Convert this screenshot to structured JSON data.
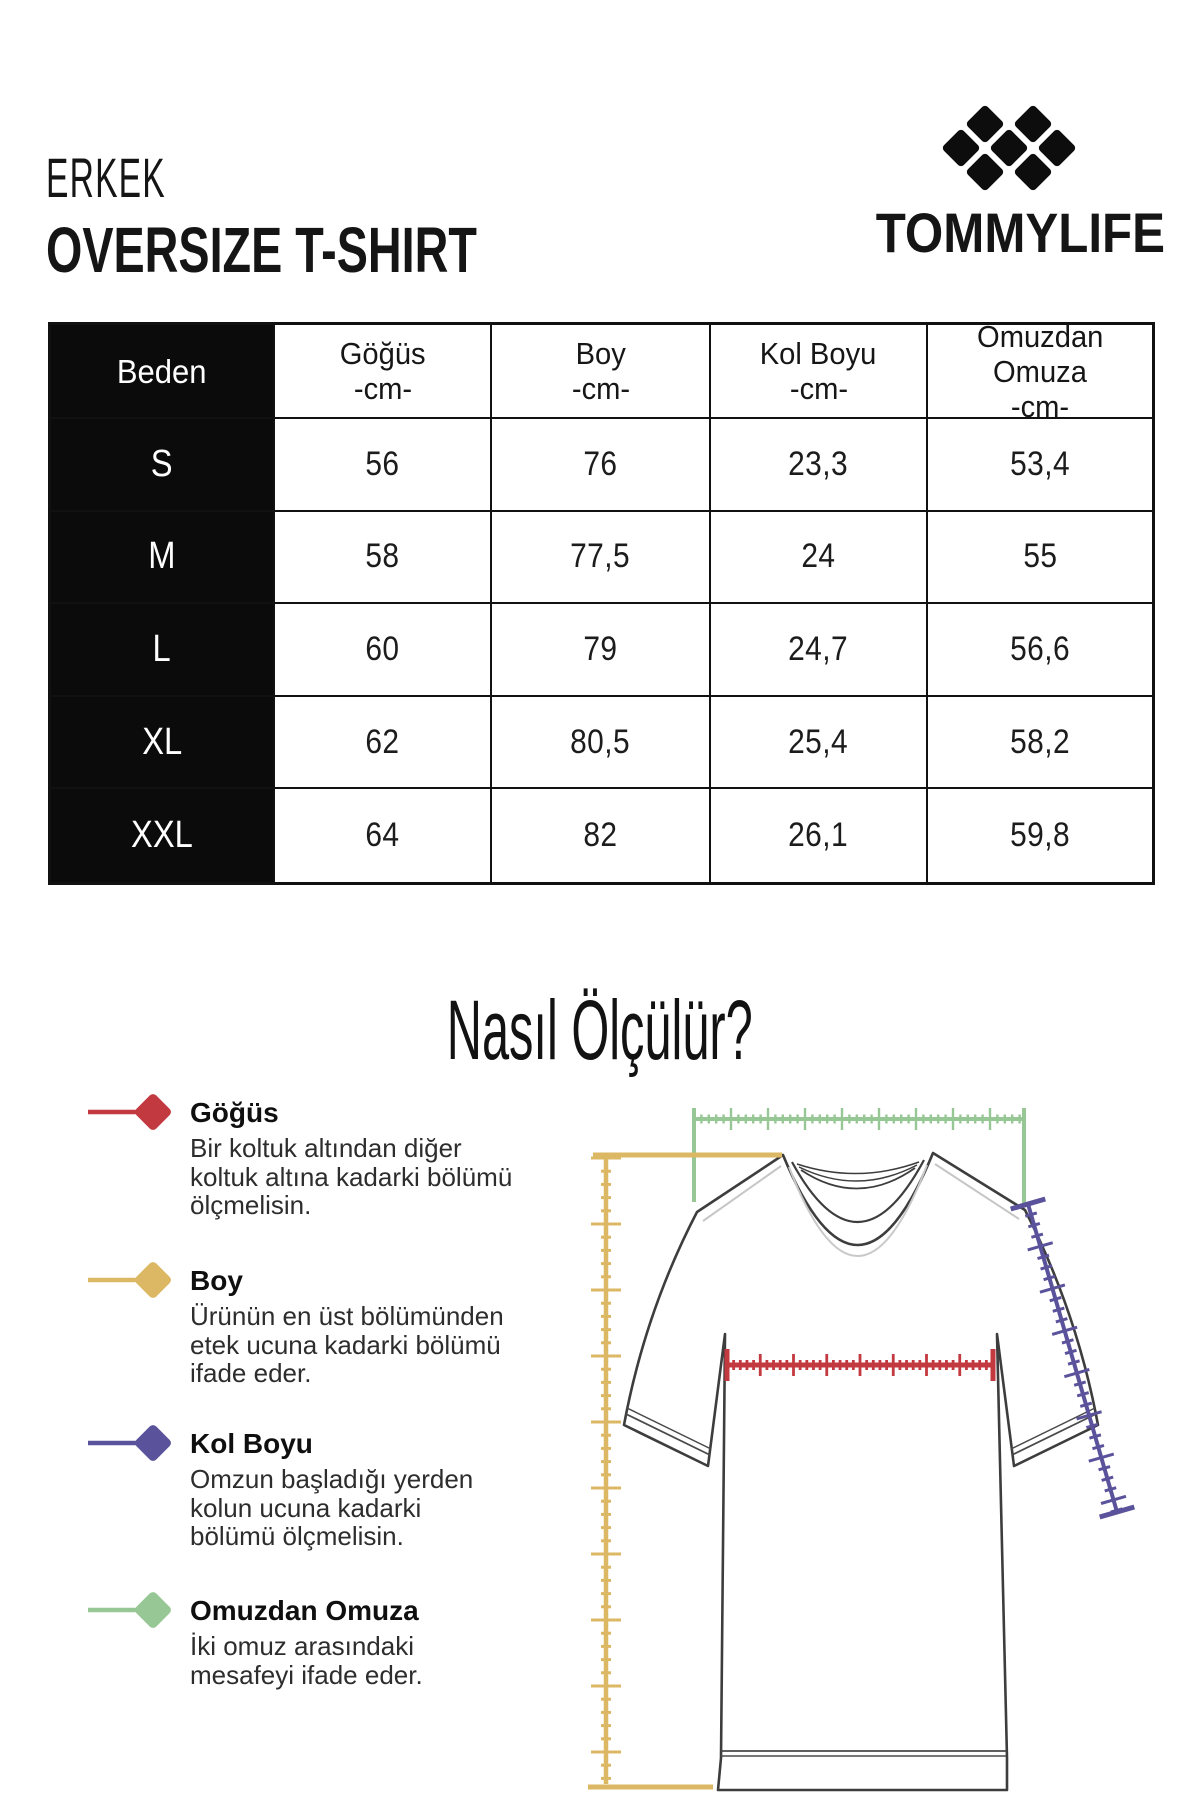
{
  "header": {
    "category": "ERKEK",
    "product": "OVERSIZE T-SHIRT",
    "brand": "TOMMYLIFE"
  },
  "size_table": {
    "columns": [
      {
        "label": "Beden"
      },
      {
        "lines": [
          "Göğüs",
          "-cm-"
        ]
      },
      {
        "lines": [
          "Boy",
          "-cm-"
        ]
      },
      {
        "lines": [
          "Kol Boyu",
          "-cm-"
        ]
      },
      {
        "lines": [
          "Omuzdan",
          "Omuza",
          "-cm-"
        ]
      }
    ],
    "rows": [
      {
        "size": "S",
        "values": [
          "56",
          "76",
          "23,3",
          "53,4"
        ]
      },
      {
        "size": "M",
        "values": [
          "58",
          "77,5",
          "24",
          "55"
        ]
      },
      {
        "size": "L",
        "values": [
          "60",
          "79",
          "24,7",
          "56,6"
        ]
      },
      {
        "size": "XL",
        "values": [
          "62",
          "80,5",
          "25,4",
          "58,2"
        ]
      },
      {
        "size": "XXL",
        "values": [
          "64",
          "82",
          "26,1",
          "59,8"
        ]
      }
    ]
  },
  "how_to_measure": {
    "title": "Nasıl Ölçülür?",
    "legend": [
      {
        "label": "Göğüs",
        "color": "#c2393f",
        "description_lines": [
          "Bir koltuk altından diğer",
          "koltuk altına kadarki bölümü",
          "ölçmelisin."
        ]
      },
      {
        "label": "Boy",
        "color": "#dcb764",
        "description_lines": [
          "Ürünün en üst bölümünden",
          "etek ucuna kadarki bölümü",
          "ifade eder."
        ]
      },
      {
        "label": "Kol Boyu",
        "color": "#5a539b",
        "description_lines": [
          "Omzun başladığı yerden",
          "kolun ucuna kadarki",
          "bölümü ölçmelisin."
        ]
      },
      {
        "label": "Omuzdan Omuza",
        "color": "#97c795",
        "description_lines": [
          "İki omuz arasındaki",
          "mesafeyi ifade eder."
        ]
      }
    ]
  },
  "diagram": {
    "ruler_colors": {
      "chest": "#c2393f",
      "length": "#dcb764",
      "sleeve": "#5a539b",
      "shoulder": "#97c795"
    },
    "shirt_outline_color": "#3d3d3d"
  }
}
